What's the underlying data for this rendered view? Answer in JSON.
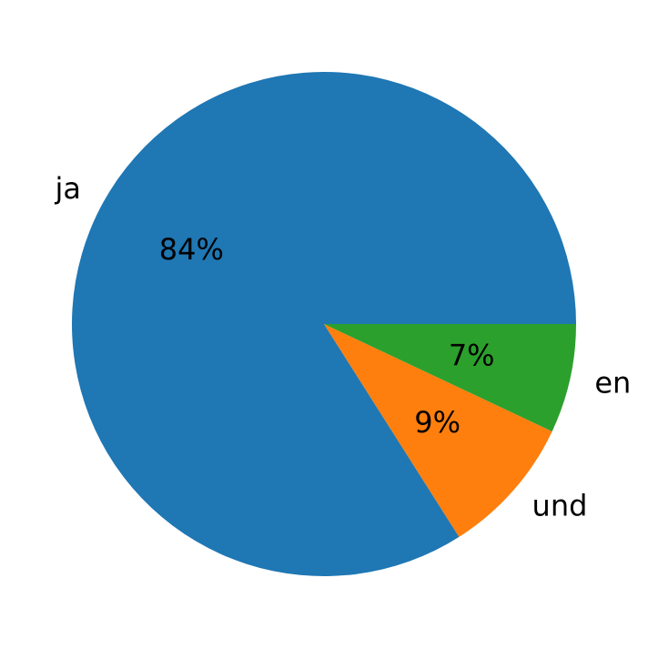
{
  "chart_data": {
    "type": "pie",
    "categories": [
      "ja",
      "und",
      "en"
    ],
    "values": [
      84,
      9,
      7
    ],
    "value_labels": [
      "84%",
      "9%",
      "7%"
    ],
    "colors": [
      "#1f77b4",
      "#ff7f0e",
      "#2ca02c"
    ]
  }
}
